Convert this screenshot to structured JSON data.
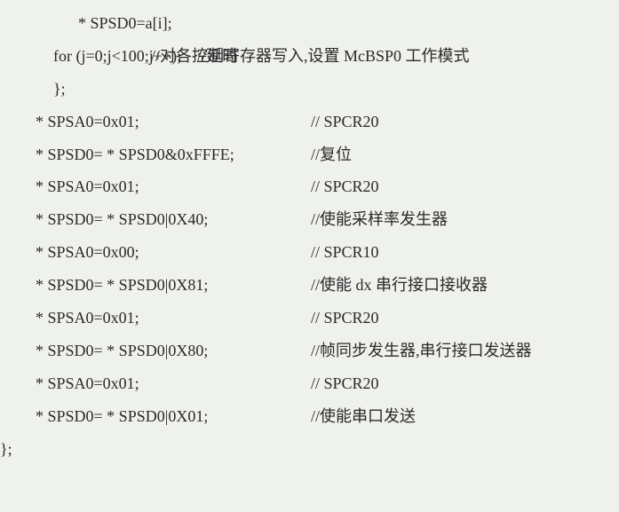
{
  "lines": [
    {
      "code": "* SPSD0=a[i];",
      "comment": "",
      "codeClass": "indent-1",
      "commentClass": ""
    },
    {
      "code": "",
      "comment": "//对各控制寄存器写入,设置 McBSP0 工作模式",
      "codeClass": "",
      "commentClass": "cmt-col2"
    },
    {
      "code": "for (j=0;j<100;j++);",
      "comment": "//延时",
      "codeClass": "indent-2",
      "commentClass": "cmt-inline"
    },
    {
      "code": "};",
      "comment": "",
      "codeClass": "indent-2",
      "commentClass": ""
    },
    {
      "code": "* SPSA0=0x01;",
      "comment": "// SPCR20",
      "codeClass": "indent-3",
      "commentClass": "cmt-col1"
    },
    {
      "code": "* SPSD0= * SPSD0&0xFFFE;",
      "comment": "//复位",
      "codeClass": "indent-3",
      "commentClass": "cmt-col3"
    },
    {
      "code": "* SPSA0=0x01;",
      "comment": "// SPCR20",
      "codeClass": "indent-3",
      "commentClass": "cmt-col1"
    },
    {
      "code": "* SPSD0= * SPSD0|0X40;",
      "comment": "//使能采样率发生器",
      "codeClass": "indent-3",
      "commentClass": "cmt-col3"
    },
    {
      "code": "* SPSA0=0x00;",
      "comment": "// SPCR10",
      "codeClass": "indent-3",
      "commentClass": "cmt-col1"
    },
    {
      "code": "* SPSD0= * SPSD0|0X81;",
      "comment": "//使能 dx 串行接口接收器",
      "codeClass": "indent-3",
      "commentClass": "cmt-col3"
    },
    {
      "code": "* SPSA0=0x01;",
      "comment": "// SPCR20",
      "codeClass": "indent-3",
      "commentClass": "cmt-col1"
    },
    {
      "code": "* SPSD0= * SPSD0|0X80;",
      "comment": "//帧同步发生器,串行接口发送器",
      "codeClass": "indent-3",
      "commentClass": "cmt-col3"
    },
    {
      "code": "* SPSA0=0x01;",
      "comment": "// SPCR20",
      "codeClass": "indent-3",
      "commentClass": "cmt-col1"
    },
    {
      "code": "* SPSD0= * SPSD0|0X01;",
      "comment": "//使能串口发送",
      "codeClass": "indent-3",
      "commentClass": "cmt-col3"
    },
    {
      "code": "};",
      "comment": "",
      "codeClass": "",
      "commentClass": "",
      "outdent": true
    }
  ]
}
